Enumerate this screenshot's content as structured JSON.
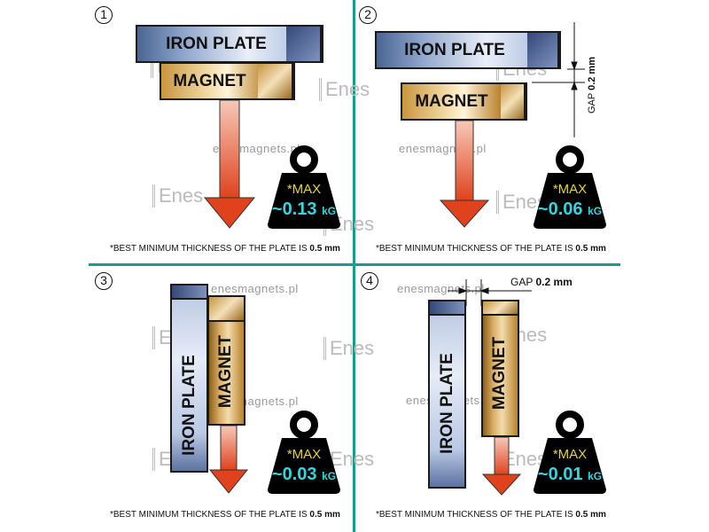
{
  "colors": {
    "divider": "#1a9a94",
    "arrow": "#e0421e",
    "weight": "#000000",
    "max_text": "#e4d33a",
    "value_text": "#36d4e0"
  },
  "watermark": {
    "site": "enesmagnets.pl",
    "logo": "Enes"
  },
  "panels": [
    {
      "number": "1",
      "iron_label": "IRON PLATE",
      "magnet_label": "MAGNET",
      "max_label": "*MAX",
      "value": "~0.13",
      "unit": "kG",
      "footnote": "*BEST MINIMUM THICKNESS OF THE PLATE IS",
      "footnote_value": "0.5 mm"
    },
    {
      "number": "2",
      "iron_label": "IRON PLATE",
      "magnet_label": "MAGNET",
      "gap_label": "GAP",
      "gap_value": "0.2 mm",
      "max_label": "*MAX",
      "value": "~0.06",
      "unit": "kG",
      "footnote": "*BEST MINIMUM THICKNESS OF THE PLATE IS",
      "footnote_value": "0.5 mm"
    },
    {
      "number": "3",
      "iron_label": "IRON  PLATE",
      "magnet_label": "MAGNET",
      "max_label": "*MAX",
      "value": "~0.03",
      "unit": "kG",
      "footnote": "*BEST MINIMUM THICKNESS OF THE PLATE IS",
      "footnote_value": "0.5 mm"
    },
    {
      "number": "4",
      "iron_label": "IRON PLATE",
      "magnet_label": "MAGNET",
      "gap_label": "GAP",
      "gap_value": "0.2 mm",
      "max_label": "*MAX",
      "value": "~0.01",
      "unit": "kG",
      "footnote": "*BEST MINIMUM THICKNESS OF THE PLATE IS",
      "footnote_value": "0.5 mm"
    }
  ]
}
